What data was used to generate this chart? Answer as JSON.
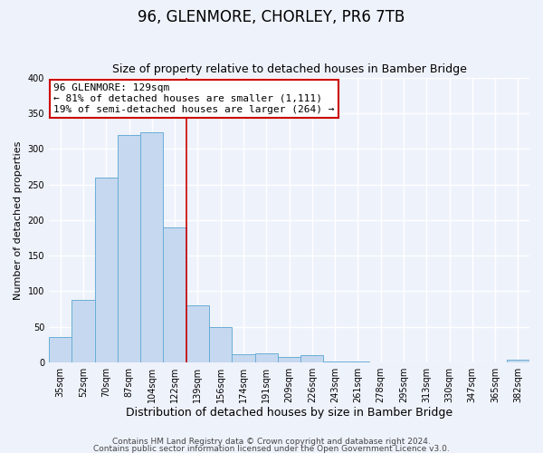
{
  "title": "96, GLENMORE, CHORLEY, PR6 7TB",
  "subtitle": "Size of property relative to detached houses in Bamber Bridge",
  "xlabel": "Distribution of detached houses by size in Bamber Bridge",
  "ylabel": "Number of detached properties",
  "bin_labels": [
    "35sqm",
    "52sqm",
    "70sqm",
    "87sqm",
    "104sqm",
    "122sqm",
    "139sqm",
    "156sqm",
    "174sqm",
    "191sqm",
    "209sqm",
    "226sqm",
    "243sqm",
    "261sqm",
    "278sqm",
    "295sqm",
    "313sqm",
    "330sqm",
    "347sqm",
    "365sqm",
    "382sqm"
  ],
  "bar_values": [
    35,
    87,
    260,
    320,
    323,
    190,
    80,
    50,
    11,
    13,
    7,
    10,
    1,
    1,
    0,
    0,
    0,
    0,
    0,
    0,
    3
  ],
  "bar_color": "#c5d8ef",
  "bar_edge_color": "#6aaed6",
  "vline_x_index": 5.5,
  "vline_color": "#cc0000",
  "annotation_line1": "96 GLENMORE: 129sqm",
  "annotation_line2": "← 81% of detached houses are smaller (1,111)",
  "annotation_line3": "19% of semi-detached houses are larger (264) →",
  "annotation_box_color": "#ffffff",
  "annotation_border_color": "#cc0000",
  "ylim": [
    0,
    400
  ],
  "yticks": [
    0,
    50,
    100,
    150,
    200,
    250,
    300,
    350,
    400
  ],
  "footnote1": "Contains HM Land Registry data © Crown copyright and database right 2024.",
  "footnote2": "Contains public sector information licensed under the Open Government Licence v3.0.",
  "background_color": "#eef2fb",
  "grid_color": "#ffffff",
  "title_fontsize": 12,
  "subtitle_fontsize": 9,
  "xlabel_fontsize": 9,
  "ylabel_fontsize": 8,
  "tick_fontsize": 7,
  "annotation_fontsize": 8,
  "footnote_fontsize": 6.5
}
